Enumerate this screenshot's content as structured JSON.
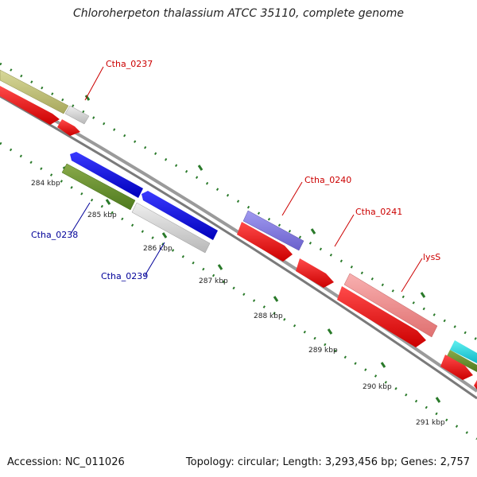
{
  "title": "Chloroherpeton thalassium ATCC 35110, complete genome",
  "footer": {
    "accession": "Accession: NC_011026",
    "topology": "Topology: circular; Length: 3,293,456 bp; Genes: 2,757"
  },
  "colors": {
    "backbone": "#8c8c8c",
    "ticks": "#2a7a2a",
    "forward_label": "#cc0000",
    "reverse_label": "#000099"
  },
  "ticks": [
    {
      "label": "284 kbp"
    },
    {
      "label": "285 kbp"
    },
    {
      "label": "286 kbp"
    },
    {
      "label": "287 kbp"
    },
    {
      "label": "288 kbp"
    },
    {
      "label": "289 kbp"
    },
    {
      "label": "290 kbp"
    },
    {
      "label": "291 kbp"
    }
  ],
  "gene_labels": [
    {
      "name": "Ctha_0237",
      "strand": "forward"
    },
    {
      "name": "Ctha_0238",
      "strand": "reverse"
    },
    {
      "name": "Ctha_0239",
      "strand": "reverse"
    },
    {
      "name": "Ctha_0240",
      "strand": "forward"
    },
    {
      "name": "Ctha_0241",
      "strand": "forward"
    },
    {
      "name": "lysS",
      "strand": "forward"
    }
  ]
}
